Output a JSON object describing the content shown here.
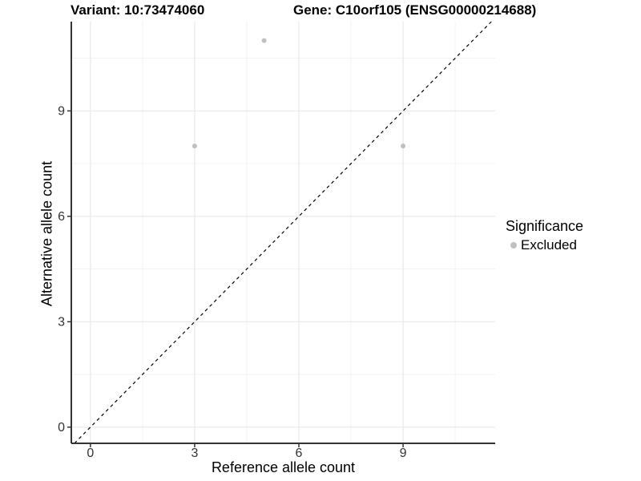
{
  "header": {
    "variant_title": "Variant: 10:73474060",
    "gene_title": "Gene: C10orf105 (ENSG00000214688)"
  },
  "chart_data": {
    "type": "scatter",
    "title_left": "Variant: 10:73474060",
    "title_right": "Gene: C10orf105 (ENSG00000214688)",
    "xlabel": "Reference allele count",
    "ylabel": "Alternative allele count",
    "xlim": [
      -0.55,
      11.65
    ],
    "ylim": [
      -0.46,
      11.54
    ],
    "x_major_ticks": [
      0,
      3,
      6,
      9
    ],
    "y_major_ticks": [
      0,
      3,
      6,
      9
    ],
    "x_minor_ticks": [
      1.5,
      4.5,
      7.5,
      10.5
    ],
    "y_minor_ticks": [
      1.5,
      4.5,
      7.5,
      10.5
    ],
    "grid": true,
    "legend_position": "right",
    "series": [
      {
        "name": "Excluded",
        "color": "#c0c0c0",
        "points": [
          {
            "x": 3,
            "y": 8
          },
          {
            "x": 5,
            "y": 11
          },
          {
            "x": 9,
            "y": 8
          }
        ]
      }
    ],
    "reference_line": {
      "description": "identity line y = x",
      "slope": 1,
      "intercept": 0,
      "linetype": "dashed",
      "color": "#000000"
    }
  },
  "legend": {
    "title": "Significance",
    "entries": [
      {
        "label": "Excluded",
        "color": "#c0c0c0"
      }
    ]
  },
  "colors": {
    "background": "#ffffff",
    "grid_major": "#e8e8e8",
    "grid_minor": "#f1f1f1",
    "axis_line": "#333333",
    "tick_mark": "#333333",
    "tick_text": "#333333",
    "point": "#c0c0c0"
  }
}
